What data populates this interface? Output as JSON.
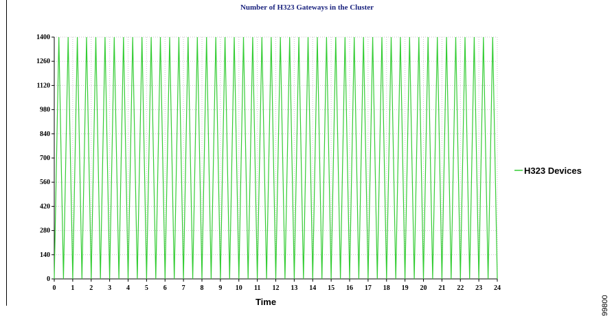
{
  "chart_data": {
    "type": "line",
    "title": "Number of H323 Gateways in the Cluster",
    "xlabel": "Time",
    "ylabel": "",
    "xlim": [
      0,
      24
    ],
    "ylim": [
      0,
      1400
    ],
    "xticks": [
      "0",
      "1",
      "2",
      "3",
      "4",
      "5",
      "6",
      "7",
      "8",
      "9",
      "10",
      "11",
      "12",
      "13",
      "14",
      "15",
      "16",
      "17",
      "18",
      "19",
      "20",
      "21",
      "22",
      "23",
      "24"
    ],
    "yticks": [
      "0",
      "140",
      "280",
      "420",
      "560",
      "700",
      "840",
      "980",
      "1120",
      "1260",
      "1400"
    ],
    "grid": true,
    "legend_position": "right",
    "series": [
      {
        "name": "H323 Devices",
        "color": "#33cc33",
        "pattern": "alternating",
        "x": [
          0,
          0.25,
          0.5,
          0.75,
          1,
          1.25,
          1.5,
          1.75,
          2,
          2.25,
          2.5,
          2.75,
          3,
          3.25,
          3.5,
          3.75,
          4,
          4.25,
          4.5,
          4.75,
          5,
          5.25,
          5.5,
          5.75,
          6,
          6.25,
          6.5,
          6.75,
          7,
          7.25,
          7.5,
          7.75,
          8,
          8.25,
          8.5,
          8.75,
          9,
          9.25,
          9.5,
          9.75,
          10,
          10.25,
          10.5,
          10.75,
          11,
          11.25,
          11.5,
          11.75,
          12,
          12.25,
          12.5,
          12.75,
          13,
          13.25,
          13.5,
          13.75,
          14,
          14.25,
          14.5,
          14.75,
          15,
          15.25,
          15.5,
          15.75,
          16,
          16.25,
          16.5,
          16.75,
          17,
          17.25,
          17.5,
          17.75,
          18,
          18.25,
          18.5,
          18.75,
          19,
          19.25,
          19.5,
          19.75,
          20,
          20.25,
          20.5,
          20.75,
          21,
          21.25,
          21.5,
          21.75,
          22,
          22.25,
          22.5,
          22.75,
          23,
          23.25,
          23.5,
          23.75,
          24
        ],
        "low": 0,
        "high": 1400
      }
    ]
  },
  "side_id": "99800"
}
